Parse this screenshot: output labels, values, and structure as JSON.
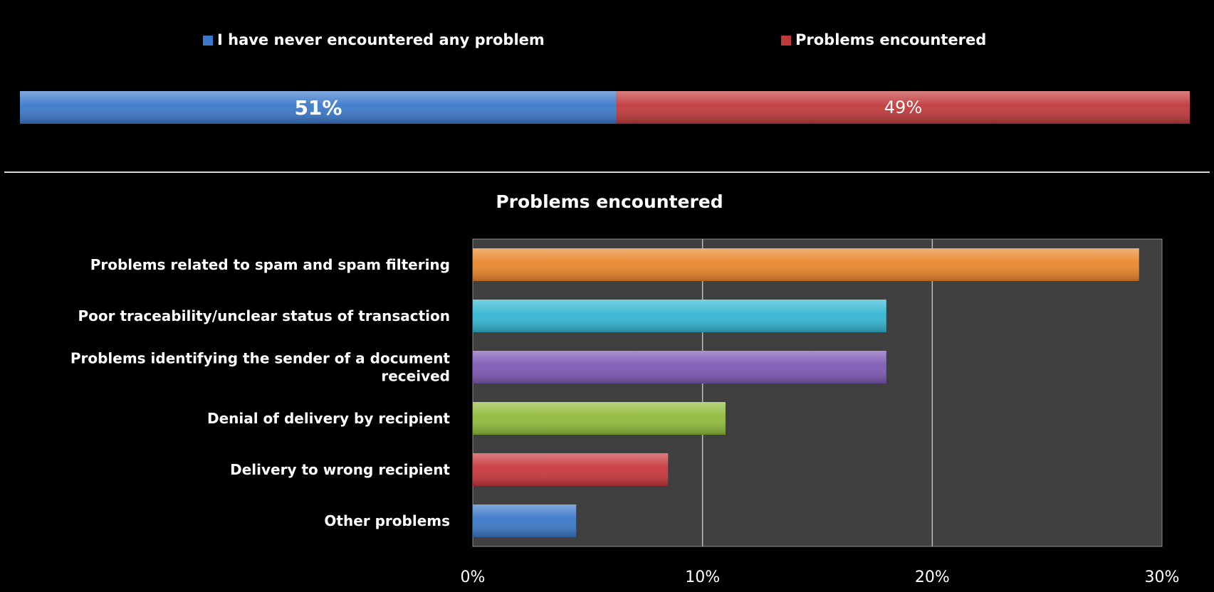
{
  "chart_data": [
    {
      "type": "bar",
      "orientation": "horizontal-stacked",
      "legend_position": "top",
      "series": [
        {
          "name": "I have never encountered any problem",
          "value": 51,
          "label": "51%",
          "color": "#3b78c9"
        },
        {
          "name": "Problems encountered",
          "value": 49,
          "label": "49%",
          "color": "#c0393b"
        }
      ]
    },
    {
      "type": "bar",
      "orientation": "horizontal",
      "title": "Problems encountered",
      "categories": [
        "Problems related to spam and spam filtering",
        "Poor traceability/unclear status of transaction",
        "Problems identifying the sender of a document received",
        "Denial of delivery by recipient",
        "Delivery to wrong recipient",
        "Other problems"
      ],
      "category_lines": [
        [
          "Problems related to spam and spam filtering"
        ],
        [
          "Poor traceability/unclear status of transaction"
        ],
        [
          "Problems identifying the sender of a document",
          "received"
        ],
        [
          "Denial of delivery by recipient"
        ],
        [
          "Delivery to wrong recipient"
        ],
        [
          "Other problems"
        ]
      ],
      "values": [
        29,
        18,
        18,
        11,
        8.5,
        4.5
      ],
      "colors": [
        "#e9862b",
        "#33b6d2",
        "#7d58b4",
        "#90bb3a",
        "#c8373c",
        "#3a78c7"
      ],
      "xlim": [
        0,
        30
      ],
      "xticks": [
        0,
        10,
        20,
        30
      ],
      "xtick_labels": [
        "0%",
        "10%",
        "20%",
        "30%"
      ],
      "grid": true,
      "plot_background": "#3f3f3f"
    }
  ]
}
